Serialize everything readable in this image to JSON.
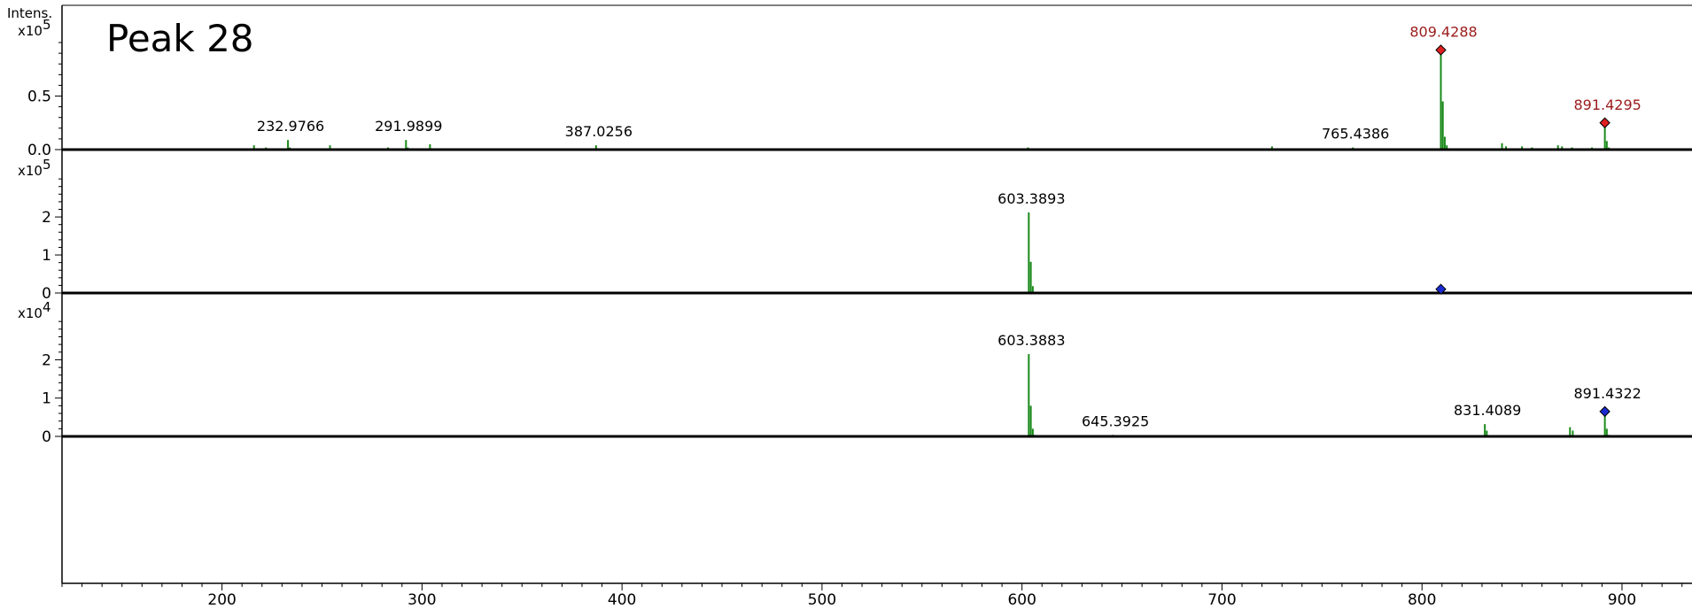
{
  "chart_data": {
    "type": "mass-spectrum",
    "title": "Peak 28",
    "ylabel": "Intens.",
    "xlim": [
      120,
      935
    ],
    "x_ticks": [
      200,
      300,
      400,
      500,
      600,
      700,
      800,
      900
    ],
    "series_color": "#1a8a1a",
    "marker_colors": {
      "red": "#e02020",
      "blue": "#1a2ad0"
    },
    "panels": [
      {
        "scale_label": "x10",
        "scale_exp": "5",
        "ylim": [
          0,
          1.05
        ],
        "y_ticks": [
          {
            "value": 0.0,
            "label": "0.0"
          },
          {
            "value": 0.5,
            "label": "0.5"
          }
        ],
        "peaks": [
          [
            809.4288,
            0.93
          ],
          [
            810.4,
            0.45
          ],
          [
            811.4,
            0.12
          ],
          [
            812.4,
            0.04
          ],
          [
            891.4295,
            0.25
          ],
          [
            892.4,
            0.08
          ],
          [
            893.4,
            0.02
          ],
          [
            232.9766,
            0.09
          ],
          [
            233.9,
            0.02
          ],
          [
            291.9899,
            0.09
          ],
          [
            292.9,
            0.02
          ],
          [
            387.0256,
            0.04
          ],
          [
            765.4386,
            0.02
          ],
          [
            216,
            0.04
          ],
          [
            254,
            0.04
          ],
          [
            304,
            0.05
          ],
          [
            283,
            0.02
          ],
          [
            222,
            0.02
          ],
          [
            603,
            0.02
          ],
          [
            725,
            0.03
          ],
          [
            840,
            0.06
          ],
          [
            842,
            0.03
          ],
          [
            850,
            0.03
          ],
          [
            855,
            0.02
          ],
          [
            868,
            0.04
          ],
          [
            870,
            0.03
          ],
          [
            875,
            0.02
          ],
          [
            885,
            0.02
          ],
          [
            182,
            0.01
          ],
          [
            190,
            0.01
          ],
          [
            200,
            0.01
          ],
          [
            268,
            0.01
          ],
          [
            315,
            0.01
          ],
          [
            340,
            0.01
          ],
          [
            345,
            0.01
          ],
          [
            362,
            0.01
          ],
          [
            390,
            0.01
          ],
          [
            398,
            0.01
          ],
          [
            450,
            0.01
          ],
          [
            468,
            0.01
          ],
          [
            480,
            0.01
          ],
          [
            520,
            0.01
          ],
          [
            550,
            0.01
          ],
          [
            580,
            0.01
          ],
          [
            631,
            0.01
          ],
          [
            905,
            0.01
          ],
          [
            920,
            0.01
          ]
        ],
        "labels": [
          {
            "x": 809.4288,
            "y": 0.93,
            "text": "809.4288",
            "color": "red"
          },
          {
            "x": 891.4295,
            "y": 0.25,
            "text": "891.4295",
            "color": "red"
          },
          {
            "x": 232.9766,
            "y": 0.09,
            "text": "232.9766",
            "color": "black"
          },
          {
            "x": 291.9899,
            "y": 0.09,
            "text": "291.9899",
            "color": "black"
          },
          {
            "x": 387.0256,
            "y": 0.04,
            "text": "387.0256",
            "color": "black"
          },
          {
            "x": 765.4386,
            "y": 0.02,
            "text": "765.4386",
            "color": "black"
          }
        ],
        "markers": [
          {
            "x": 809.4288,
            "y": 0.93,
            "color": "red"
          },
          {
            "x": 891.4295,
            "y": 0.25,
            "color": "red"
          }
        ]
      },
      {
        "scale_label": "x10",
        "scale_exp": "5",
        "ylim": [
          0,
          3.05
        ],
        "y_ticks": [
          {
            "value": 0,
            "label": "0"
          },
          {
            "value": 1,
            "label": "1"
          },
          {
            "value": 2,
            "label": "2"
          }
        ],
        "peaks": [
          [
            603.3893,
            2.12
          ],
          [
            604.4,
            0.82
          ],
          [
            605.4,
            0.18
          ],
          [
            606.4,
            0.03
          ],
          [
            645,
            0.01
          ],
          [
            620,
            0.01
          ],
          [
            700,
            0.01
          ]
        ],
        "labels": [
          {
            "x": 603.3893,
            "y": 2.12,
            "text": "603.3893",
            "color": "black"
          }
        ],
        "markers": [
          {
            "x": 809.4288,
            "y": 0.1,
            "color": "blue"
          }
        ]
      },
      {
        "scale_label": "x10",
        "scale_exp": "4",
        "ylim": [
          0,
          3.05
        ],
        "y_ticks": [
          {
            "value": 0,
            "label": "0"
          },
          {
            "value": 1,
            "label": "1"
          },
          {
            "value": 2,
            "label": "2"
          }
        ],
        "peaks": [
          [
            603.3883,
            2.15
          ],
          [
            604.4,
            0.8
          ],
          [
            605.4,
            0.2
          ],
          [
            606.4,
            0.04
          ],
          [
            645.3925,
            0.04
          ],
          [
            646.4,
            0.02
          ],
          [
            831.4089,
            0.32
          ],
          [
            832.4,
            0.15
          ],
          [
            874,
            0.24
          ],
          [
            875.4,
            0.15
          ],
          [
            891.4322,
            0.55
          ],
          [
            892.4,
            0.2
          ],
          [
            893.4,
            0.04
          ],
          [
            700,
            0.01
          ],
          [
            720,
            0.01
          ],
          [
            760,
            0.01
          ],
          [
            780,
            0.01
          ],
          [
            910,
            0.01
          ]
        ],
        "labels": [
          {
            "x": 603.3883,
            "y": 2.15,
            "text": "603.3883",
            "color": "black"
          },
          {
            "x": 645.3925,
            "y": 0.04,
            "text": "645.3925",
            "color": "black"
          },
          {
            "x": 831.4089,
            "y": 0.32,
            "text": "831.4089",
            "color": "black"
          },
          {
            "x": 891.4322,
            "y": 0.65,
            "text": "891.4322",
            "color": "black"
          }
        ],
        "markers": [
          {
            "x": 891.4322,
            "y": 0.65,
            "color": "blue"
          }
        ]
      }
    ]
  }
}
